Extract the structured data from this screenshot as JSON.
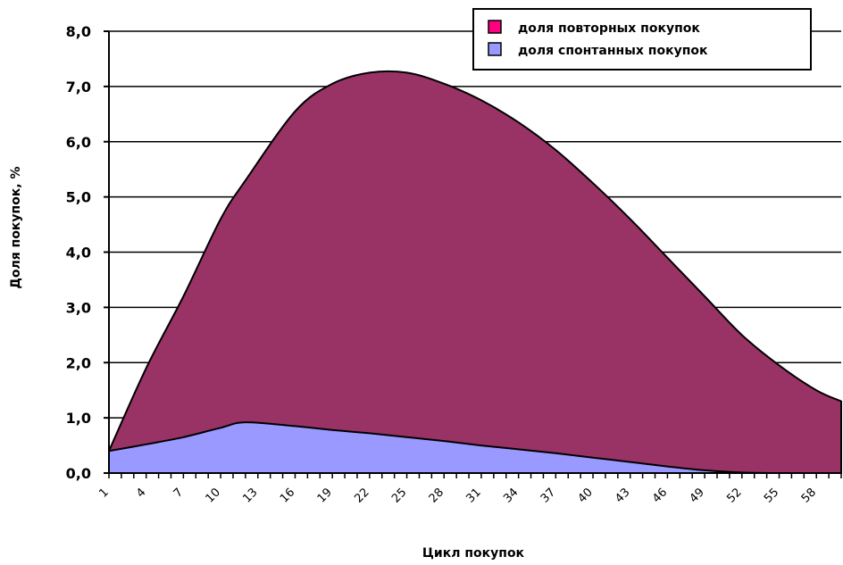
{
  "chart_data": {
    "type": "area",
    "stacked": true,
    "title": "",
    "xlabel": "Цикл покупок",
    "ylabel": "Доля покупок, %",
    "ylim": [
      0,
      8
    ],
    "yticks": [
      "0,0",
      "1,0",
      "2,0",
      "3,0",
      "4,0",
      "5,0",
      "6,0",
      "7,0",
      "8,0"
    ],
    "xlim": [
      1,
      60
    ],
    "xticks": [
      "1",
      "4",
      "7",
      "10",
      "13",
      "16",
      "19",
      "22",
      "25",
      "28",
      "31",
      "34",
      "37",
      "40",
      "43",
      "46",
      "49",
      "52",
      "55",
      "58"
    ],
    "grid": "horizontal",
    "legend_position": "top-right",
    "series": [
      {
        "name": "доля спонтанных покупок",
        "color": "#9999ff",
        "x": [
          1,
          4,
          7,
          10,
          12,
          16,
          19,
          22,
          25,
          28,
          31,
          34,
          37,
          40,
          43,
          46,
          49,
          52,
          55,
          58,
          60
        ],
        "values": [
          0.4,
          0.52,
          0.65,
          0.82,
          0.92,
          0.85,
          0.78,
          0.72,
          0.65,
          0.58,
          0.5,
          0.43,
          0.36,
          0.28,
          0.2,
          0.12,
          0.05,
          0.01,
          0.0,
          0.0,
          0.0
        ]
      },
      {
        "name": "доля повторных покупок",
        "color": "#993366",
        "legend_color": "#ff0080",
        "x": [
          1,
          4,
          7,
          10,
          12,
          16,
          19,
          22,
          25,
          28,
          31,
          34,
          37,
          40,
          43,
          46,
          49,
          52,
          55,
          58,
          60
        ],
        "totals": [
          0.4,
          1.9,
          3.2,
          4.6,
          5.3,
          6.55,
          7.05,
          7.25,
          7.25,
          7.05,
          6.75,
          6.35,
          5.85,
          5.25,
          4.6,
          3.9,
          3.2,
          2.5,
          1.95,
          1.5,
          1.3
        ]
      }
    ]
  }
}
